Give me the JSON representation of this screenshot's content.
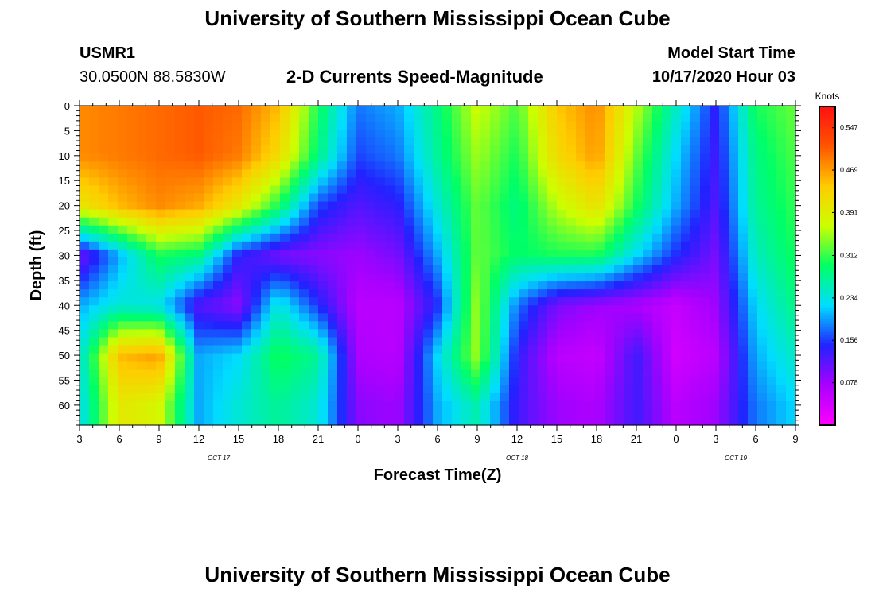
{
  "header": {
    "title": "University of Southern Mississippi Ocean Cube",
    "station": "USMR1",
    "coords": "30.0500N 88.5830W",
    "subtitle": "2-D Currents Speed-Magnitude",
    "start_label": "Model Start Time",
    "start_value": "10/17/2020 Hour 03"
  },
  "footer": {
    "title": "University of Southern Mississippi Ocean Cube"
  },
  "chart_data": {
    "type": "heatmap",
    "xlabel": "Forecast Time(Z)",
    "ylabel": "Depth (ft)",
    "x_tick_labels": [
      "3",
      "6",
      "9",
      "12",
      "15",
      "18",
      "21",
      "0",
      "3",
      "6",
      "9",
      "12",
      "15",
      "18",
      "21",
      "0",
      "3",
      "6",
      "9"
    ],
    "x_date_labels": [
      {
        "text": "OCT 17",
        "at_tick": 3.5
      },
      {
        "text": "OCT 18",
        "at_tick": 11
      },
      {
        "text": "OCT 19",
        "at_tick": 16.5
      }
    ],
    "xlim_hours": [
      0,
      54
    ],
    "y_ticks": [
      0,
      5,
      10,
      15,
      20,
      25,
      30,
      35,
      40,
      45,
      50,
      55,
      60
    ],
    "ylim": [
      0,
      64
    ],
    "y_inverted": true,
    "colorbar": {
      "unit": "Knots",
      "ticks": [
        "0.547",
        "0.469",
        "0.391",
        "0.312",
        "0.234",
        "0.156",
        "0.078"
      ],
      "tick_values": [
        0.547,
        0.469,
        0.391,
        0.312,
        0.234,
        0.156,
        0.078
      ],
      "range": [
        0.0,
        0.586
      ],
      "colors": [
        "#ff00ff",
        "#aa00ff",
        "#2222ff",
        "#00ddff",
        "#00ff66",
        "#ccff00",
        "#ffcc00",
        "#ff5500",
        "#ff1111"
      ]
    },
    "speed_hours": [
      0,
      3,
      6,
      9,
      12,
      15,
      18,
      21,
      24,
      27,
      30,
      33,
      36,
      39,
      42,
      45,
      48,
      51,
      54
    ],
    "speed_depths": [
      0,
      10,
      20,
      30,
      40,
      50,
      60
    ],
    "speed": [
      [
        0.48,
        0.49,
        0.5,
        0.51,
        0.5,
        0.45,
        0.3,
        0.18,
        0.2,
        0.28,
        0.37,
        0.32,
        0.44,
        0.48,
        0.36,
        0.25,
        0.14,
        0.3,
        0.33
      ],
      [
        0.48,
        0.49,
        0.5,
        0.51,
        0.49,
        0.42,
        0.28,
        0.16,
        0.18,
        0.27,
        0.35,
        0.3,
        0.42,
        0.47,
        0.33,
        0.22,
        0.13,
        0.28,
        0.32
      ],
      [
        0.4,
        0.45,
        0.48,
        0.46,
        0.4,
        0.3,
        0.16,
        0.12,
        0.14,
        0.24,
        0.33,
        0.28,
        0.36,
        0.41,
        0.3,
        0.2,
        0.12,
        0.27,
        0.31
      ],
      [
        0.1,
        0.2,
        0.3,
        0.28,
        0.14,
        0.1,
        0.09,
        0.08,
        0.1,
        0.2,
        0.33,
        0.29,
        0.3,
        0.3,
        0.22,
        0.15,
        0.1,
        0.25,
        0.3
      ],
      [
        0.2,
        0.24,
        0.23,
        0.12,
        0.09,
        0.24,
        0.15,
        0.06,
        0.06,
        0.15,
        0.35,
        0.18,
        0.1,
        0.08,
        0.07,
        0.05,
        0.08,
        0.22,
        0.28
      ],
      [
        0.23,
        0.45,
        0.47,
        0.2,
        0.22,
        0.3,
        0.27,
        0.07,
        0.06,
        0.22,
        0.35,
        0.14,
        0.06,
        0.05,
        0.13,
        0.04,
        0.06,
        0.2,
        0.25
      ],
      [
        0.22,
        0.4,
        0.38,
        0.2,
        0.24,
        0.27,
        0.24,
        0.09,
        0.08,
        0.2,
        0.26,
        0.13,
        0.08,
        0.07,
        0.13,
        0.06,
        0.08,
        0.18,
        0.22
      ]
    ]
  }
}
